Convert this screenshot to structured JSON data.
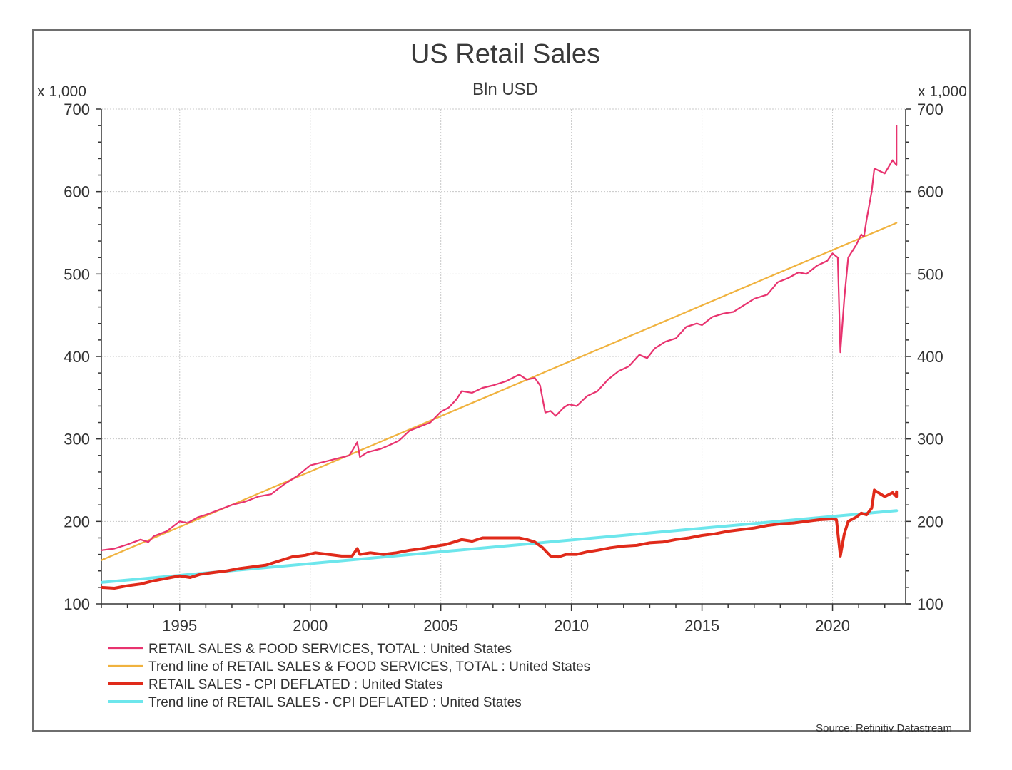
{
  "chart_data": {
    "type": "line",
    "title": "US Retail Sales",
    "subtitle": "Bln USD",
    "left_axis_unit": "x 1,000",
    "right_axis_unit": "x 1,000",
    "xlabel": "",
    "ylabel": "",
    "xlim": [
      1992.0,
      2022.8
    ],
    "ylim": [
      100,
      700
    ],
    "grid": true,
    "legend_position": "bottom-left",
    "x_ticks": [
      1995,
      2000,
      2005,
      2010,
      2015,
      2020
    ],
    "x_tick_labels": [
      "1995",
      "2000",
      "2005",
      "2010",
      "2015",
      "2020"
    ],
    "y_ticks": [
      100,
      200,
      300,
      400,
      500,
      600,
      700
    ],
    "y_tick_labels": [
      "100",
      "200",
      "300",
      "400",
      "500",
      "600",
      "700"
    ],
    "series": [
      {
        "name": "RETAIL SALES & FOOD SERVICES, TOTAL : United States",
        "color": "#e8336f",
        "width": 2.2,
        "points": [
          [
            1992.0,
            165
          ],
          [
            1992.5,
            167
          ],
          [
            1993.0,
            172
          ],
          [
            1993.5,
            178
          ],
          [
            1993.8,
            175
          ],
          [
            1994.0,
            182
          ],
          [
            1994.5,
            188
          ],
          [
            1995.0,
            200
          ],
          [
            1995.3,
            198
          ],
          [
            1995.7,
            205
          ],
          [
            1996.0,
            208
          ],
          [
            1996.5,
            214
          ],
          [
            1997.0,
            220
          ],
          [
            1997.5,
            224
          ],
          [
            1998.0,
            230
          ],
          [
            1998.5,
            233
          ],
          [
            1999.0,
            245
          ],
          [
            1999.5,
            255
          ],
          [
            2000.0,
            268
          ],
          [
            2000.5,
            272
          ],
          [
            2001.0,
            276
          ],
          [
            2001.5,
            280
          ],
          [
            2001.8,
            296
          ],
          [
            2001.9,
            278
          ],
          [
            2002.2,
            284
          ],
          [
            2002.7,
            288
          ],
          [
            2003.0,
            292
          ],
          [
            2003.4,
            298
          ],
          [
            2003.8,
            310
          ],
          [
            2004.2,
            315
          ],
          [
            2004.6,
            320
          ],
          [
            2005.0,
            333
          ],
          [
            2005.3,
            338
          ],
          [
            2005.6,
            348
          ],
          [
            2005.8,
            358
          ],
          [
            2006.2,
            356
          ],
          [
            2006.6,
            362
          ],
          [
            2007.0,
            365
          ],
          [
            2007.5,
            370
          ],
          [
            2008.0,
            378
          ],
          [
            2008.3,
            372
          ],
          [
            2008.6,
            374
          ],
          [
            2008.8,
            365
          ],
          [
            2009.0,
            332
          ],
          [
            2009.2,
            334
          ],
          [
            2009.4,
            328
          ],
          [
            2009.7,
            338
          ],
          [
            2009.9,
            342
          ],
          [
            2010.2,
            340
          ],
          [
            2010.6,
            352
          ],
          [
            2011.0,
            358
          ],
          [
            2011.4,
            372
          ],
          [
            2011.8,
            382
          ],
          [
            2012.2,
            388
          ],
          [
            2012.6,
            402
          ],
          [
            2012.9,
            398
          ],
          [
            2013.2,
            410
          ],
          [
            2013.6,
            418
          ],
          [
            2014.0,
            422
          ],
          [
            2014.4,
            436
          ],
          [
            2014.8,
            440
          ],
          [
            2015.0,
            438
          ],
          [
            2015.4,
            448
          ],
          [
            2015.8,
            452
          ],
          [
            2016.2,
            454
          ],
          [
            2016.6,
            462
          ],
          [
            2017.0,
            470
          ],
          [
            2017.5,
            475
          ],
          [
            2017.9,
            490
          ],
          [
            2018.3,
            495
          ],
          [
            2018.7,
            502
          ],
          [
            2019.0,
            500
          ],
          [
            2019.4,
            510
          ],
          [
            2019.8,
            516
          ],
          [
            2020.0,
            525
          ],
          [
            2020.2,
            520
          ],
          [
            2020.3,
            405
          ],
          [
            2020.45,
            470
          ],
          [
            2020.6,
            520
          ],
          [
            2020.9,
            535
          ],
          [
            2021.1,
            548
          ],
          [
            2021.2,
            545
          ],
          [
            2021.3,
            565
          ],
          [
            2021.5,
            600
          ],
          [
            2021.6,
            628
          ],
          [
            2021.8,
            625
          ],
          [
            2022.0,
            622
          ],
          [
            2022.3,
            638
          ],
          [
            2022.5,
            632
          ],
          [
            2022.7,
            652
          ],
          [
            2022.9,
            670
          ],
          [
            2023.1,
            675
          ],
          [
            2023.2,
            680
          ]
        ]
      },
      {
        "name": "Trend line of RETAIL SALES & FOOD SERVICES, TOTAL : United States",
        "color": "#f0b23e",
        "width": 2.2,
        "points": [
          [
            1992.0,
            153
          ],
          [
            2022.8,
            562
          ]
        ]
      },
      {
        "name": "RETAIL SALES - CPI DEFLATED : United States",
        "color": "#e02a1a",
        "width": 4,
        "points": [
          [
            1992.0,
            120
          ],
          [
            1992.5,
            119
          ],
          [
            1993.0,
            122
          ],
          [
            1993.5,
            124
          ],
          [
            1994.0,
            128
          ],
          [
            1994.5,
            131
          ],
          [
            1995.0,
            134
          ],
          [
            1995.4,
            132
          ],
          [
            1995.8,
            136
          ],
          [
            1996.3,
            138
          ],
          [
            1996.8,
            140
          ],
          [
            1997.3,
            143
          ],
          [
            1997.8,
            145
          ],
          [
            1998.3,
            147
          ],
          [
            1998.8,
            152
          ],
          [
            1999.3,
            157
          ],
          [
            1999.8,
            159
          ],
          [
            2000.2,
            162
          ],
          [
            2000.7,
            160
          ],
          [
            2001.2,
            158
          ],
          [
            2001.6,
            158
          ],
          [
            2001.8,
            167
          ],
          [
            2001.9,
            160
          ],
          [
            2002.3,
            162
          ],
          [
            2002.8,
            160
          ],
          [
            2003.3,
            162
          ],
          [
            2003.8,
            165
          ],
          [
            2004.3,
            167
          ],
          [
            2004.8,
            170
          ],
          [
            2005.2,
            172
          ],
          [
            2005.5,
            175
          ],
          [
            2005.8,
            178
          ],
          [
            2006.2,
            176
          ],
          [
            2006.6,
            180
          ],
          [
            2007.0,
            180
          ],
          [
            2007.5,
            180
          ],
          [
            2008.0,
            180
          ],
          [
            2008.3,
            178
          ],
          [
            2008.6,
            175
          ],
          [
            2008.9,
            168
          ],
          [
            2009.2,
            158
          ],
          [
            2009.5,
            157
          ],
          [
            2009.8,
            160
          ],
          [
            2010.2,
            160
          ],
          [
            2010.6,
            163
          ],
          [
            2011.0,
            165
          ],
          [
            2011.5,
            168
          ],
          [
            2012.0,
            170
          ],
          [
            2012.5,
            171
          ],
          [
            2013.0,
            174
          ],
          [
            2013.5,
            175
          ],
          [
            2014.0,
            178
          ],
          [
            2014.5,
            180
          ],
          [
            2015.0,
            183
          ],
          [
            2015.5,
            185
          ],
          [
            2016.0,
            188
          ],
          [
            2016.5,
            190
          ],
          [
            2017.0,
            192
          ],
          [
            2017.5,
            195
          ],
          [
            2018.0,
            197
          ],
          [
            2018.5,
            198
          ],
          [
            2019.0,
            200
          ],
          [
            2019.5,
            202
          ],
          [
            2020.0,
            203
          ],
          [
            2020.15,
            202
          ],
          [
            2020.3,
            158
          ],
          [
            2020.45,
            185
          ],
          [
            2020.6,
            200
          ],
          [
            2020.9,
            205
          ],
          [
            2021.1,
            210
          ],
          [
            2021.3,
            208
          ],
          [
            2021.5,
            216
          ],
          [
            2021.6,
            238
          ],
          [
            2021.8,
            234
          ],
          [
            2022.0,
            230
          ],
          [
            2022.3,
            235
          ],
          [
            2022.5,
            230
          ],
          [
            2022.7,
            236
          ],
          [
            2022.9,
            232
          ],
          [
            2023.1,
            234
          ],
          [
            2023.2,
            231
          ]
        ]
      },
      {
        "name": "Trend line of RETAIL SALES - CPI DEFLATED : United States",
        "color": "#6de6ec",
        "width": 4,
        "points": [
          [
            1992.0,
            126
          ],
          [
            2022.8,
            213
          ]
        ]
      }
    ],
    "source": "Source: Refinitiv Datastream"
  }
}
